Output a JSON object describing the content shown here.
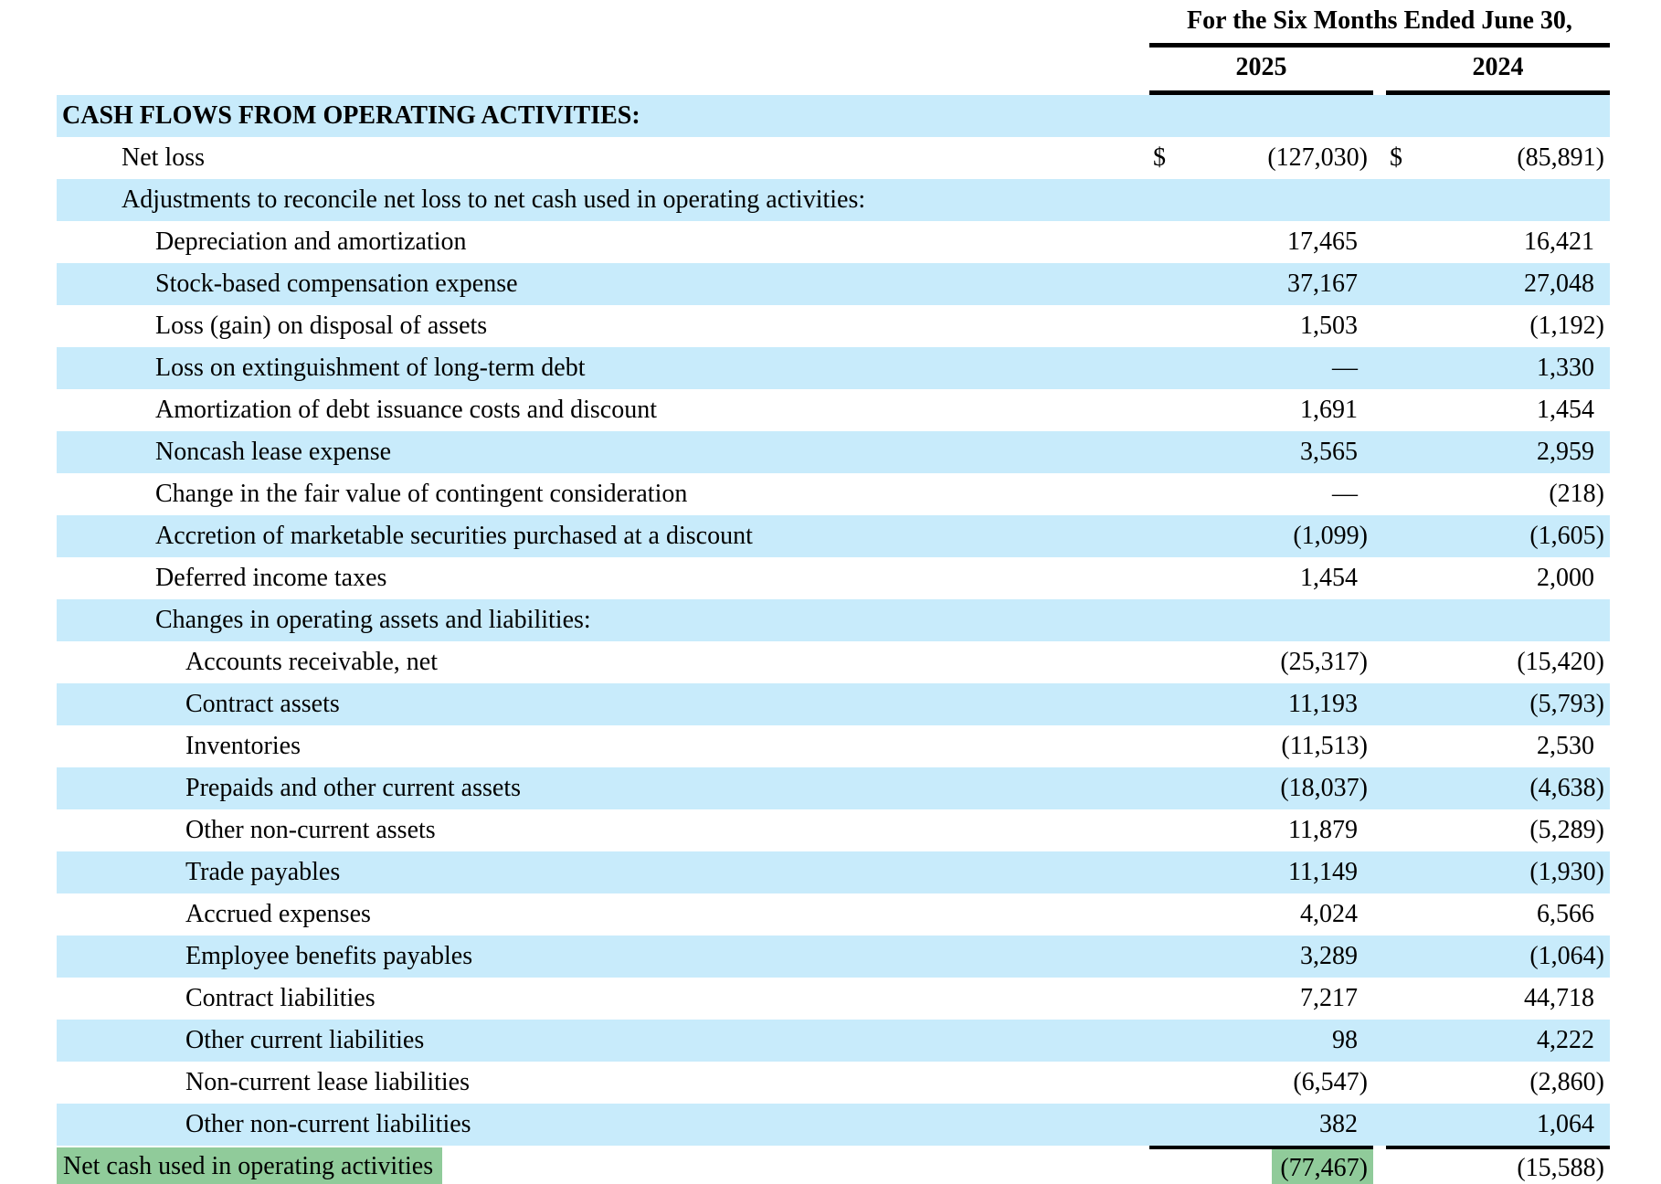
{
  "table": {
    "period_header": "For the Six Months Ended June 30,",
    "columns": [
      "2025",
      "2024"
    ],
    "currency_symbol": "$",
    "colors": {
      "row_shade_blue": "#C8EBFB",
      "highlight_green": "#90CB9A",
      "text": "#000000",
      "background": "#FFFFFF"
    },
    "rows": [
      {
        "label": "CASH FLOWS FROM OPERATING ACTIVITIES:",
        "indent": 0,
        "bold": true,
        "shaded": true,
        "v2025": "",
        "v2024": ""
      },
      {
        "label": "Net loss",
        "indent": 1,
        "dollar": true,
        "v2025": "(127,030)",
        "v2024": "(85,891)"
      },
      {
        "label": "Adjustments to reconcile net loss to net cash used in operating activities:",
        "indent": 1,
        "shaded": true,
        "v2025": "",
        "v2024": ""
      },
      {
        "label": "Depreciation and amortization",
        "indent": 2,
        "v2025": "17,465",
        "v2024": "16,421"
      },
      {
        "label": "Stock-based compensation expense",
        "indent": 2,
        "shaded": true,
        "v2025": "37,167",
        "v2024": "27,048"
      },
      {
        "label": "Loss (gain) on disposal of assets",
        "indent": 2,
        "v2025": "1,503",
        "v2024": "(1,192)"
      },
      {
        "label": "Loss on extinguishment of long-term debt",
        "indent": 2,
        "shaded": true,
        "v2025": "—",
        "v2024": "1,330"
      },
      {
        "label": "Amortization of debt issuance costs and discount",
        "indent": 2,
        "v2025": "1,691",
        "v2024": "1,454"
      },
      {
        "label": "Noncash lease expense",
        "indent": 2,
        "shaded": true,
        "v2025": "3,565",
        "v2024": "2,959"
      },
      {
        "label": "Change in the fair value of contingent consideration",
        "indent": 2,
        "v2025": "—",
        "v2024": "(218)"
      },
      {
        "label": "Accretion of marketable securities purchased at a discount",
        "indent": 2,
        "shaded": true,
        "v2025": "(1,099)",
        "v2024": "(1,605)"
      },
      {
        "label": "Deferred income taxes",
        "indent": 2,
        "v2025": "1,454",
        "v2024": "2,000"
      },
      {
        "label": "Changes in operating assets and liabilities:",
        "indent": 2,
        "shaded": true,
        "v2025": "",
        "v2024": ""
      },
      {
        "label": "Accounts receivable, net",
        "indent": 3,
        "v2025": "(25,317)",
        "v2024": "(15,420)"
      },
      {
        "label": "Contract assets",
        "indent": 3,
        "shaded": true,
        "v2025": "11,193",
        "v2024": "(5,793)"
      },
      {
        "label": "Inventories",
        "indent": 3,
        "v2025": "(11,513)",
        "v2024": "2,530"
      },
      {
        "label": "Prepaids and other current assets",
        "indent": 3,
        "shaded": true,
        "v2025": "(18,037)",
        "v2024": "(4,638)"
      },
      {
        "label": "Other non-current assets",
        "indent": 3,
        "v2025": "11,879",
        "v2024": "(5,289)"
      },
      {
        "label": "Trade payables",
        "indent": 3,
        "shaded": true,
        "v2025": "11,149",
        "v2024": "(1,930)"
      },
      {
        "label": "Accrued expenses",
        "indent": 3,
        "v2025": "4,024",
        "v2024": "6,566"
      },
      {
        "label": "Employee benefits payables",
        "indent": 3,
        "shaded": true,
        "v2025": "3,289",
        "v2024": "(1,064)"
      },
      {
        "label": "Contract liabilities",
        "indent": 3,
        "v2025": "7,217",
        "v2024": "44,718"
      },
      {
        "label": "Other current liabilities",
        "indent": 3,
        "shaded": true,
        "v2025": "98",
        "v2024": "4,222"
      },
      {
        "label": "Non-current lease liabilities",
        "indent": 3,
        "v2025": "(6,547)",
        "v2024": "(2,860)"
      },
      {
        "label": "Other non-current liabilities",
        "indent": 3,
        "shaded": true,
        "v2025": "382",
        "v2024": "1,064"
      },
      {
        "label": "Net cash used in operating activities",
        "indent": 0,
        "total": true,
        "v2025": "(77,467)",
        "v2024": "(15,588)"
      }
    ]
  }
}
